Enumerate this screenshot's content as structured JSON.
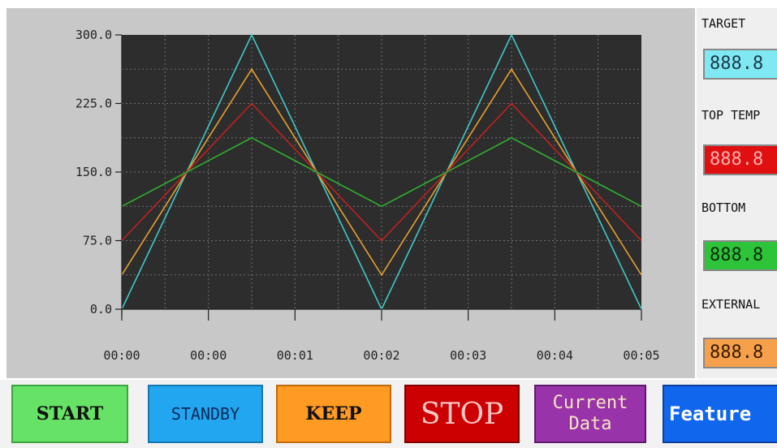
{
  "chart_data": {
    "type": "line",
    "title": "",
    "xlabel": "",
    "ylabel": "",
    "ylim": [
      0,
      300
    ],
    "y_ticks": [
      "300.0",
      "225.0",
      "150.0",
      "75.0",
      "0.0"
    ],
    "x_tick_labels": [
      "00:00",
      "00:00",
      "00:01",
      "00:02",
      "00:03",
      "00:04",
      "00:05"
    ],
    "grid": true,
    "x": [
      0,
      1.5,
      3,
      4.5,
      6
    ],
    "series": [
      {
        "color": "#40c8c8",
        "values": [
          0,
          300,
          0,
          300,
          0
        ]
      },
      {
        "color": "#e8a030",
        "values": [
          37.5,
          262.5,
          37.5,
          262.5,
          37.5
        ]
      },
      {
        "color": "#c02020",
        "values": [
          75,
          225,
          75,
          225,
          75
        ]
      },
      {
        "color": "#30b030",
        "values": [
          112.5,
          187.5,
          112.5,
          187.5,
          112.5
        ]
      }
    ]
  },
  "side_panel": {
    "target_label": "TARGET",
    "target_value": "888.8",
    "top_label": "TOP TEMP",
    "top_value": "888.8",
    "bottom_label": "BOTTOM",
    "bottom_value": "888.8",
    "external_label": "EXTERNAL",
    "external_value": "888.8",
    "colors": {
      "target": "#7fe8f2",
      "top": "#e01010",
      "bottom": "#2ec43a",
      "external": "#f5a04a"
    }
  },
  "buttons": {
    "start": "START",
    "standby": "STANDBY",
    "keep": "KEEP",
    "stop": "STOP",
    "current_data": "Current Data",
    "feature": "Feature"
  }
}
